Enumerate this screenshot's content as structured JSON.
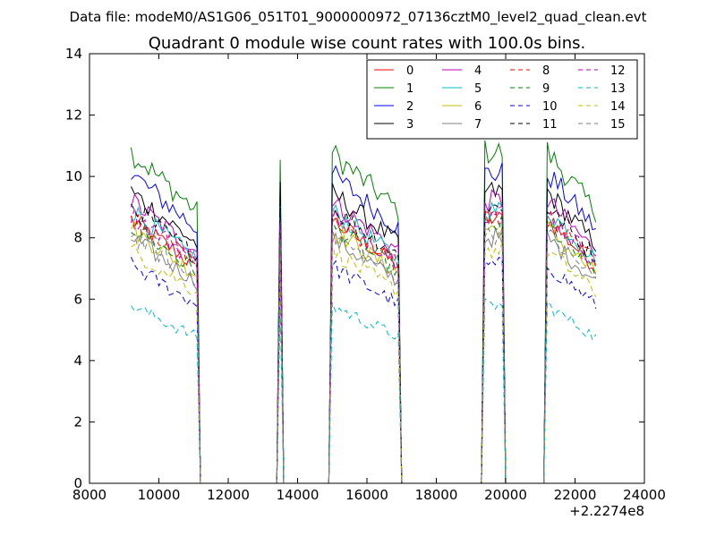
{
  "figure": {
    "suptitle": "Data file: modeM0/AS1G06_051T01_9000000972_07136cztM0_level2_quad_clean.evt"
  },
  "chart_data": {
    "type": "line",
    "title": "Quadrant 0 module wise count rates with 100.0s bins.",
    "xlabel": "",
    "ylabel": "",
    "x_offset_label": "+2.2274e8",
    "xlim": [
      8000,
      24000
    ],
    "ylim": [
      0,
      14
    ],
    "xticks": [
      8000,
      10000,
      12000,
      14000,
      16000,
      18000,
      20000,
      22000,
      24000
    ],
    "yticks": [
      0,
      2,
      4,
      6,
      8,
      10,
      12,
      14
    ],
    "legend_position": "top-right",
    "good_time_intervals": [
      [
        9200,
        11100
      ],
      [
        13450,
        13550
      ],
      [
        14950,
        16950
      ],
      [
        19400,
        19900
      ],
      [
        21200,
        22600
      ]
    ],
    "series": [
      {
        "name": "0",
        "color": "#ff0000",
        "dash": "solid",
        "level": 8.6
      },
      {
        "name": "1",
        "color": "#008000",
        "dash": "solid",
        "level": 10.8
      },
      {
        "name": "2",
        "color": "#0000ff",
        "dash": "solid",
        "level": 10.1
      },
      {
        "name": "3",
        "color": "#000000",
        "dash": "solid",
        "level": 9.5
      },
      {
        "name": "4",
        "color": "#bf00bf",
        "dash": "solid",
        "level": 9.2
      },
      {
        "name": "5",
        "color": "#00bfbf",
        "dash": "solid",
        "level": 8.9
      },
      {
        "name": "6",
        "color": "#bfbf00",
        "dash": "solid",
        "level": 8.3
      },
      {
        "name": "7",
        "color": "#808080",
        "dash": "solid",
        "level": 8.0
      },
      {
        "name": "8",
        "color": "#ff0000",
        "dash": "dashed",
        "level": 8.7
      },
      {
        "name": "9",
        "color": "#008000",
        "dash": "dashed",
        "level": 8.4
      },
      {
        "name": "10",
        "color": "#0000ff",
        "dash": "dashed",
        "level": 7.1
      },
      {
        "name": "11",
        "color": "#000000",
        "dash": "dashed",
        "level": 9.0
      },
      {
        "name": "12",
        "color": "#bf00bf",
        "dash": "dashed",
        "level": 8.8
      },
      {
        "name": "13",
        "color": "#00bfbf",
        "dash": "dashed",
        "level": 5.8
      },
      {
        "name": "14",
        "color": "#bfbf00",
        "dash": "dashed",
        "level": 7.6
      },
      {
        "name": "15",
        "color": "#808080",
        "dash": "dashed",
        "level": 8.1
      }
    ]
  }
}
